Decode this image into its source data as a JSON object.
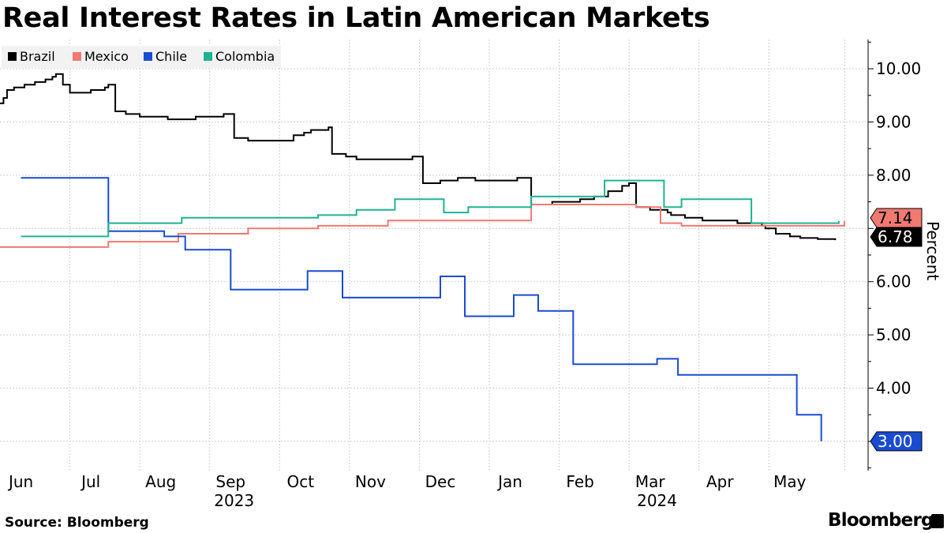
{
  "title": "Real Interest Rates in Latin American Markets",
  "source": "Source: Bloomberg",
  "brand": "Bloomberg",
  "chart_data": {
    "type": "line",
    "title": "Real Interest Rates in Latin American Markets",
    "ylabel": "Percent",
    "xlabel": "",
    "ylim": [
      2.45,
      10.55
    ],
    "yticks": [
      "3.00",
      "4.00",
      "5.00",
      "6.00",
      "7.00",
      "8.00",
      "9.00",
      "10.00"
    ],
    "xlim": [
      0,
      12.25
    ],
    "months": [
      {
        "label": "Jun",
        "x": 0.3
      },
      {
        "label": "Jul",
        "x": 1.3
      },
      {
        "label": "Aug",
        "x": 2.3
      },
      {
        "label": "Sep",
        "x": 3.3
      },
      {
        "label": "Oct",
        "x": 4.3
      },
      {
        "label": "Nov",
        "x": 5.3
      },
      {
        "label": "Dec",
        "x": 6.3
      },
      {
        "label": "Jan",
        "x": 7.3
      },
      {
        "label": "Feb",
        "x": 8.3
      },
      {
        "label": "Mar",
        "x": 9.3
      },
      {
        "label": "Apr",
        "x": 10.3
      },
      {
        "label": "May",
        "x": 11.3
      }
    ],
    "years": [
      {
        "label": "2023",
        "x": 3.35
      },
      {
        "label": "2024",
        "x": 9.4
      }
    ],
    "legend": [
      "Brazil",
      "Mexico",
      "Chile",
      "Colombia"
    ],
    "series": [
      {
        "name": "Brazil",
        "color": "#000000",
        "last_label": "6.78",
        "x": [
          0,
          0.05,
          0.1,
          0.2,
          0.35,
          0.5,
          0.65,
          0.75,
          0.8,
          0.9,
          1.0,
          1.1,
          1.3,
          1.5,
          1.55,
          1.6,
          1.65,
          1.7,
          1.8,
          2.0,
          2.2,
          2.4,
          2.6,
          2.8,
          3.0,
          3.2,
          3.35,
          3.55,
          3.7,
          4.0,
          4.2,
          4.35,
          4.45,
          4.55,
          4.7,
          4.75,
          4.95,
          5.1,
          5.25,
          5.5,
          5.8,
          5.9,
          6.05,
          6.3,
          6.45,
          6.55,
          6.75,
          6.8,
          7.1,
          7.3,
          7.4,
          7.6,
          7.7,
          7.9,
          8.05,
          8.3,
          8.5,
          8.7,
          8.9,
          9.0,
          9.05,
          9.1,
          9.3,
          9.45,
          9.55,
          9.6,
          9.8,
          10.0,
          10.05,
          10.25,
          10.55,
          10.9,
          10.95,
          11.1,
          11.2,
          11.3,
          11.45,
          11.7,
          11.95
        ],
        "values": [
          9.35,
          9.45,
          9.6,
          9.65,
          9.7,
          9.75,
          9.8,
          9.85,
          9.9,
          9.7,
          9.55,
          9.55,
          9.6,
          9.65,
          9.7,
          9.7,
          9.2,
          9.2,
          9.15,
          9.1,
          9.1,
          9.05,
          9.05,
          9.1,
          9.1,
          9.15,
          8.7,
          8.65,
          8.65,
          8.65,
          8.75,
          8.8,
          8.85,
          8.85,
          8.9,
          8.4,
          8.35,
          8.3,
          8.3,
          8.3,
          8.3,
          8.35,
          7.85,
          7.9,
          7.9,
          7.95,
          7.95,
          7.9,
          7.9,
          7.9,
          7.95,
          7.45,
          7.45,
          7.5,
          7.5,
          7.55,
          7.6,
          7.7,
          7.8,
          7.85,
          7.85,
          7.4,
          7.35,
          7.35,
          7.3,
          7.25,
          7.2,
          7.2,
          7.15,
          7.15,
          7.1,
          7.05,
          7.0,
          6.9,
          6.9,
          6.85,
          6.82,
          6.8,
          6.78
        ]
      },
      {
        "name": "Mexico",
        "color": "#f07a72",
        "last_label": "7.14",
        "x": [
          0,
          1.5,
          1.55,
          2.0,
          2.5,
          2.55,
          2.8,
          3.5,
          3.55,
          4.5,
          4.55,
          5.1,
          5.5,
          5.55,
          6.3,
          7.0,
          7.55,
          7.6,
          8.5,
          9.0,
          9.1,
          9.4,
          9.45,
          9.7,
          9.75,
          10.0,
          11.5,
          12.0,
          12.08
        ],
        "values": [
          6.65,
          6.65,
          6.75,
          6.75,
          6.75,
          6.9,
          6.9,
          6.9,
          7.0,
          7.0,
          7.05,
          7.05,
          7.05,
          7.15,
          7.15,
          7.15,
          7.15,
          7.45,
          7.45,
          7.45,
          7.4,
          7.4,
          7.1,
          7.1,
          7.05,
          7.05,
          7.05,
          7.05,
          7.14
        ]
      },
      {
        "name": "Chile",
        "color": "#1a4cd1",
        "last_label": "3.00",
        "x": [
          0.3,
          1.5,
          1.55,
          2.25,
          2.35,
          2.55,
          2.65,
          2.7,
          3.3,
          3.35,
          4.4,
          4.45,
          4.9,
          4.95,
          6.3,
          6.35,
          6.65,
          6.7,
          7.35,
          7.4,
          7.7,
          7.75,
          8.2,
          8.25,
          9.4,
          9.45,
          9.7,
          9.75,
          11.4,
          11.45,
          11.75
        ],
        "values": [
          7.95,
          7.95,
          6.95,
          6.95,
          6.85,
          6.85,
          6.6,
          6.6,
          5.85,
          5.85,
          6.2,
          6.2,
          5.7,
          5.7,
          6.1,
          6.1,
          5.35,
          5.35,
          5.75,
          5.75,
          5.45,
          5.45,
          4.45,
          4.45,
          4.55,
          4.55,
          4.25,
          4.25,
          3.5,
          3.5,
          3.0
        ]
      },
      {
        "name": "Colombia",
        "color": "#1fb390",
        "last_label": "",
        "x": [
          0.3,
          1.5,
          1.55,
          2.55,
          2.6,
          3.55,
          3.6,
          4.5,
          4.55,
          5.1,
          5.6,
          5.65,
          6.3,
          6.35,
          6.65,
          6.7,
          7.55,
          7.6,
          8.6,
          8.65,
          9.45,
          9.5,
          9.7,
          9.75,
          10.7,
          10.75,
          11.95,
          12.0
        ],
        "values": [
          6.85,
          6.85,
          7.1,
          7.1,
          7.2,
          7.2,
          7.2,
          7.2,
          7.25,
          7.35,
          7.35,
          7.55,
          7.55,
          7.3,
          7.3,
          7.4,
          7.4,
          7.6,
          7.6,
          7.9,
          7.9,
          7.4,
          7.4,
          7.55,
          7.55,
          7.1,
          7.1,
          7.14
        ]
      }
    ]
  }
}
